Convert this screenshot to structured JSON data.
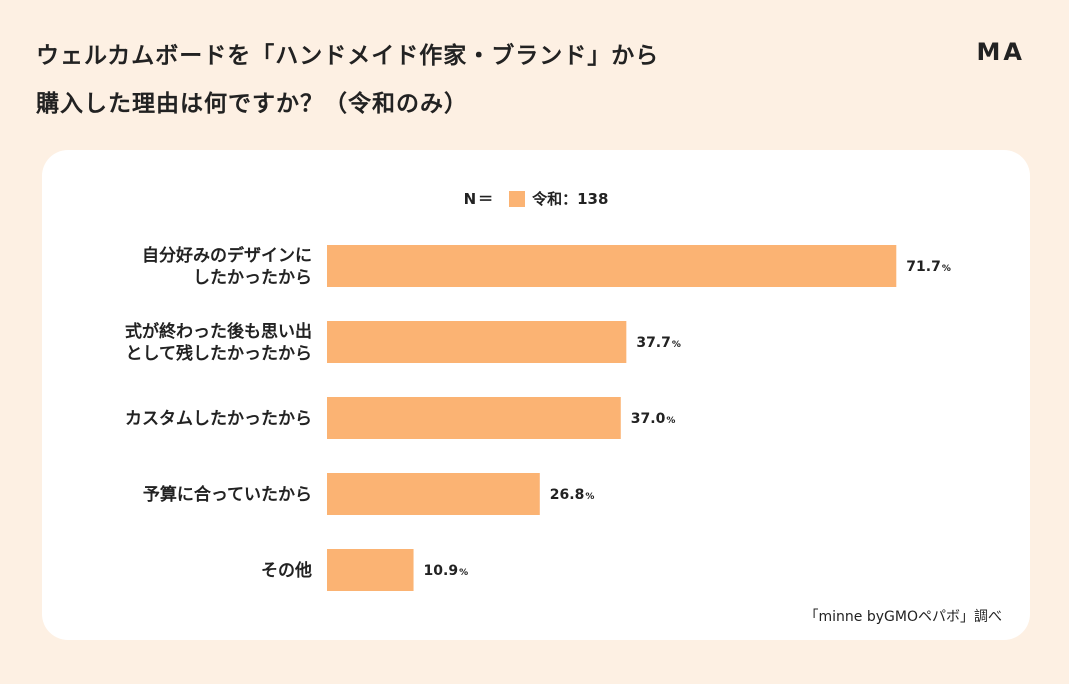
{
  "title": {
    "line1": "ウェルカムボードを「ハンドメイド作家・ブランド」から",
    "line2": "購入した理由は何ですか？（令和のみ）"
  },
  "brand_logo": "MA",
  "legend": {
    "n_label": "N＝",
    "series_label": "令和：138"
  },
  "source_note": "「minne byGMOペパボ」調べ",
  "colors": {
    "bar": "#fbb373",
    "background": "#fdf0e3",
    "panel": "#ffffff"
  },
  "chart_data": {
    "type": "bar",
    "orientation": "horizontal",
    "categories": [
      "自分好みのデザインにしたかったから",
      "式が終わった後も思い出として残したかったから",
      "カスタムしたかったから",
      "予算に合っていたから",
      "その他"
    ],
    "category_lines": [
      [
        "自分好みのデザインに",
        "したかったから"
      ],
      [
        "式が終わった後も思い出",
        "として残したかったから"
      ],
      [
        "カスタムしたかったから"
      ],
      [
        "予算に合っていたから"
      ],
      [
        "その他"
      ]
    ],
    "series": [
      {
        "name": "令和：138",
        "values": [
          71.7,
          37.7,
          37.0,
          26.8,
          10.9
        ]
      }
    ],
    "value_labels": [
      "71.7",
      "37.7",
      "37.0",
      "26.8",
      "10.9"
    ],
    "unit": "%",
    "xlim": [
      0,
      100
    ],
    "grid": false,
    "legend_position": "top-center"
  }
}
